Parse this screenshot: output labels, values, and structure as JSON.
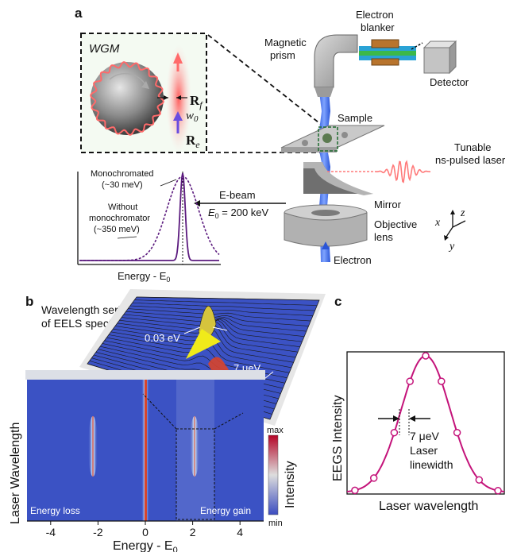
{
  "panel_a": {
    "label": "a",
    "inset": {
      "title": "WGM",
      "rf": "R",
      "rf_sub": "f",
      "w0": "w",
      "w0_sub": "0",
      "re": "R",
      "re_sub": "e"
    },
    "labels": {
      "electron_blanker_1": "Electron",
      "electron_blanker_2": "blanker",
      "magnetic_prism_1": "Magnetic",
      "magnetic_prism_2": "prism",
      "detector": "Detector",
      "sample": "Sample",
      "laser_1": "Tunable",
      "laser_2": "ns-pulsed laser",
      "mirror": "Mirror",
      "objective_1": "Objective",
      "objective_2": "lens",
      "electron": "Electron",
      "ebeam_1": "E-beam",
      "ebeam_2_pre": "E",
      "ebeam_2_sub": "0",
      "ebeam_2_post": " = 200 keV",
      "mono_1": "Monochromated",
      "mono_2": "(~30 meV)",
      "nomono_1": "Without",
      "nomono_2": "monochromator",
      "nomono_3": "(~350 meV)",
      "energy_axis_pre": "Energy - E",
      "energy_axis_sub": "0",
      "axis_x": "x",
      "axis_y": "y",
      "axis_z": "z"
    }
  },
  "panel_b": {
    "label": "b",
    "title_1": "Wavelength series",
    "title_2": "of EELS spectra",
    "ann_1": "0.03 eV",
    "ann_2": "7 μeV",
    "ylabel": "Laser Wavelength",
    "xlabel_pre": "Energy - E",
    "xlabel_sub": "0",
    "ticks": [
      "-4",
      "-2",
      "0",
      "2",
      "4"
    ],
    "energy_loss": "Energy loss",
    "energy_gain": "Energy gain",
    "cbar_max": "max",
    "cbar_min": "min",
    "cbar_label": "Intensity",
    "colors": {
      "background": "#3b52c4",
      "peak": "#d8442c"
    }
  },
  "panel_c": {
    "label": "c",
    "ylabel": "EEGS Intensity",
    "xlabel": "Laser wavelength",
    "ann_1": "7 μeV",
    "ann_2": "Laser",
    "ann_3": "linewidth",
    "colors": {
      "curve": "#c4137a"
    }
  }
}
